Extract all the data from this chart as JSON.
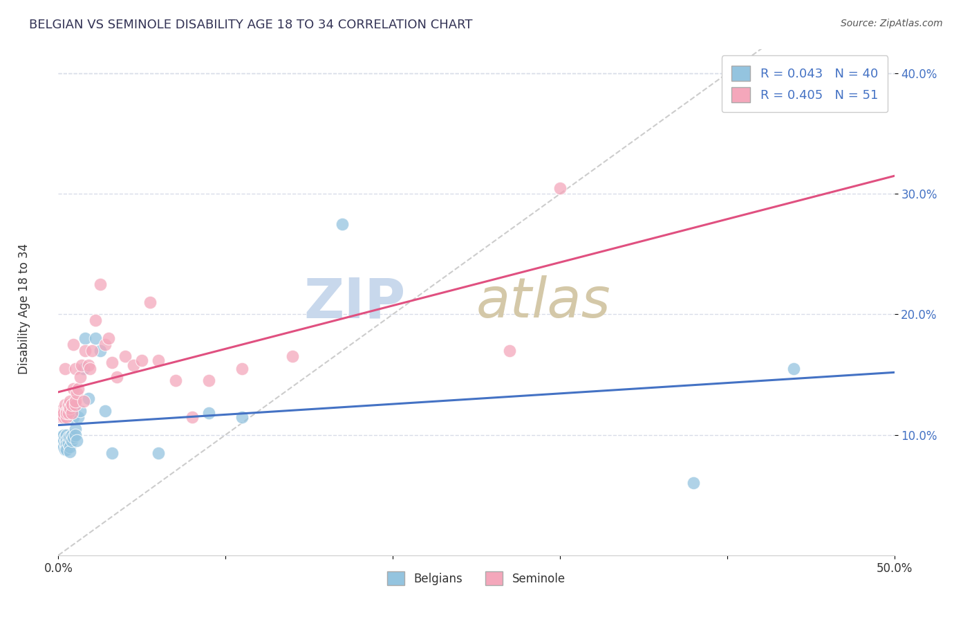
{
  "title": "BELGIAN VS SEMINOLE DISABILITY AGE 18 TO 34 CORRELATION CHART",
  "source": "Source: ZipAtlas.com",
  "ylabel": "Disability Age 18 to 34",
  "xlim": [
    0.0,
    0.5
  ],
  "ylim": [
    0.0,
    0.42
  ],
  "xticks": [
    0.0,
    0.1,
    0.2,
    0.3,
    0.4,
    0.5
  ],
  "xticklabels": [
    "0.0%",
    "",
    "",
    "",
    "",
    "50.0%"
  ],
  "yticks": [
    0.1,
    0.2,
    0.3,
    0.4
  ],
  "yticklabels": [
    "10.0%",
    "20.0%",
    "30.0%",
    "40.0%"
  ],
  "legend_label_belgian": "R = 0.043   N = 40",
  "legend_label_seminole": "R = 0.405   N = 51",
  "belgians_color": "#94c4df",
  "seminole_color": "#f4a7bb",
  "trend_belgian_color": "#4472c4",
  "trend_seminole_color": "#e05080",
  "trend_dashed_color": "#c0c0c0",
  "grid_color": "#d8dce8",
  "belgians_x": [
    0.001,
    0.002,
    0.002,
    0.003,
    0.003,
    0.003,
    0.004,
    0.004,
    0.004,
    0.005,
    0.005,
    0.005,
    0.005,
    0.006,
    0.006,
    0.007,
    0.007,
    0.007,
    0.008,
    0.008,
    0.009,
    0.009,
    0.01,
    0.01,
    0.011,
    0.012,
    0.013,
    0.015,
    0.016,
    0.018,
    0.022,
    0.025,
    0.028,
    0.032,
    0.06,
    0.09,
    0.11,
    0.17,
    0.38,
    0.44
  ],
  "belgians_y": [
    0.098,
    0.095,
    0.092,
    0.1,
    0.095,
    0.09,
    0.098,
    0.093,
    0.088,
    0.1,
    0.095,
    0.092,
    0.088,
    0.098,
    0.093,
    0.098,
    0.09,
    0.086,
    0.1,
    0.095,
    0.115,
    0.098,
    0.105,
    0.1,
    0.095,
    0.115,
    0.12,
    0.155,
    0.18,
    0.13,
    0.18,
    0.17,
    0.12,
    0.085,
    0.085,
    0.118,
    0.115,
    0.275,
    0.06,
    0.155
  ],
  "seminole_x": [
    0.001,
    0.002,
    0.002,
    0.003,
    0.003,
    0.003,
    0.004,
    0.004,
    0.005,
    0.005,
    0.005,
    0.006,
    0.006,
    0.006,
    0.007,
    0.007,
    0.008,
    0.008,
    0.008,
    0.009,
    0.009,
    0.01,
    0.01,
    0.01,
    0.011,
    0.012,
    0.013,
    0.014,
    0.015,
    0.016,
    0.018,
    0.019,
    0.02,
    0.022,
    0.025,
    0.028,
    0.03,
    0.032,
    0.035,
    0.04,
    0.045,
    0.05,
    0.055,
    0.06,
    0.07,
    0.08,
    0.09,
    0.11,
    0.14,
    0.27,
    0.3
  ],
  "seminole_y": [
    0.12,
    0.118,
    0.115,
    0.12,
    0.115,
    0.118,
    0.125,
    0.155,
    0.12,
    0.115,
    0.118,
    0.122,
    0.125,
    0.118,
    0.128,
    0.122,
    0.125,
    0.118,
    0.125,
    0.138,
    0.175,
    0.125,
    0.128,
    0.155,
    0.135,
    0.138,
    0.148,
    0.158,
    0.128,
    0.17,
    0.158,
    0.155,
    0.17,
    0.195,
    0.225,
    0.175,
    0.18,
    0.16,
    0.148,
    0.165,
    0.158,
    0.162,
    0.21,
    0.162,
    0.145,
    0.115,
    0.145,
    0.155,
    0.165,
    0.17,
    0.305
  ]
}
